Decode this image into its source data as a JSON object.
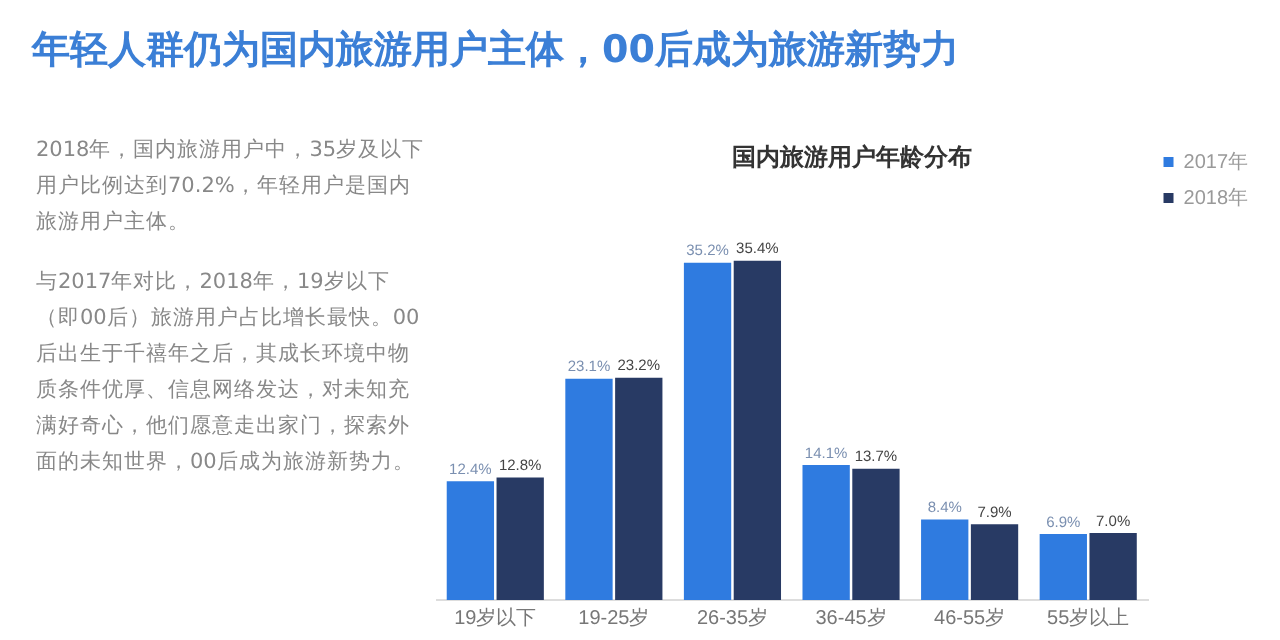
{
  "chart_data": {
    "type": "bar",
    "title": "年轻人群仍为国内旅游用户主体，00后成为旅游新势力",
    "subtitle": "国内旅游用户年龄分布",
    "annotations": [
      "2018年，国内旅游用户中，35岁及以下用户比例达到70.2%，年轻用户是国内旅游用户主体。",
      "与2017年对比，2018年，19岁以下（即00后）旅游用户占比增长最快。00后出生于千禧年之后，其成长环境中物质条件优厚、信息网络发达，对未知充满好奇心，他们愿意走出家门，探索外面的未知世界，00后成为旅游新势力。"
    ],
    "categories": [
      "19岁以下",
      "19-25岁",
      "26-35岁",
      "36-45岁",
      "46-55岁",
      "55岁以上"
    ],
    "series": [
      {
        "name": "2017年",
        "color": "#2f7be0",
        "values": [
          12.4,
          23.1,
          35.2,
          14.1,
          8.4,
          6.9
        ],
        "value_labels": [
          "12.4%",
          "23.1%",
          "35.2%",
          "14.1%",
          "8.4%",
          "6.9%"
        ]
      },
      {
        "name": "2018年",
        "color": "#283a64",
        "values": [
          12.8,
          23.2,
          35.4,
          13.7,
          7.9,
          7.0
        ],
        "value_labels": [
          "12.8%",
          "23.2%",
          "35.4%",
          "13.7%",
          "7.9%",
          "7.0%"
        ]
      }
    ],
    "legend": "top right",
    "grid": false
  }
}
